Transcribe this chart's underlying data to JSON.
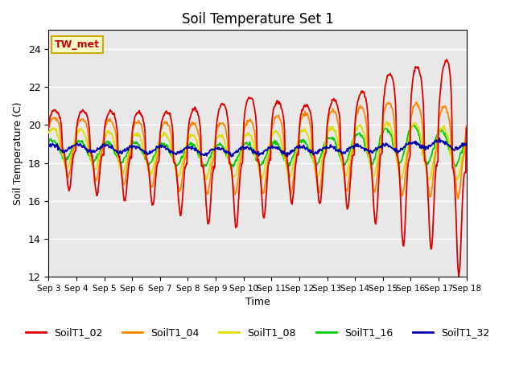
{
  "title": "Soil Temperature Set 1",
  "xlabel": "Time",
  "ylabel": "Soil Temperature (C)",
  "ylim": [
    12,
    25
  ],
  "yticks": [
    12,
    14,
    16,
    18,
    20,
    22,
    24
  ],
  "bg_color": "#e8e8e8",
  "annotation_text": "TW_met",
  "annotation_color": "#cc0000",
  "annotation_bg": "#ffffcc",
  "annotation_border": "#ccaa00",
  "series_colors": {
    "SoilT1_02": "#dd0000",
    "SoilT1_04": "#ff8800",
    "SoilT1_08": "#dddd00",
    "SoilT1_16": "#00cc00",
    "SoilT1_32": "#0000aa"
  },
  "xtick_labels": [
    "Sep 3",
    "Sep 4",
    "Sep 5",
    "Sep 6",
    "Sep 7",
    "Sep 8",
    "Sep 9",
    "Sep 10",
    "Sep 11",
    "Sep 12",
    "Sep 13",
    "Sep 14",
    "Sep 15",
    "Sep 16",
    "Sep 17",
    "Sep 18"
  ],
  "n_days": 15,
  "samples_per_day": 48,
  "line_width": 1.3
}
